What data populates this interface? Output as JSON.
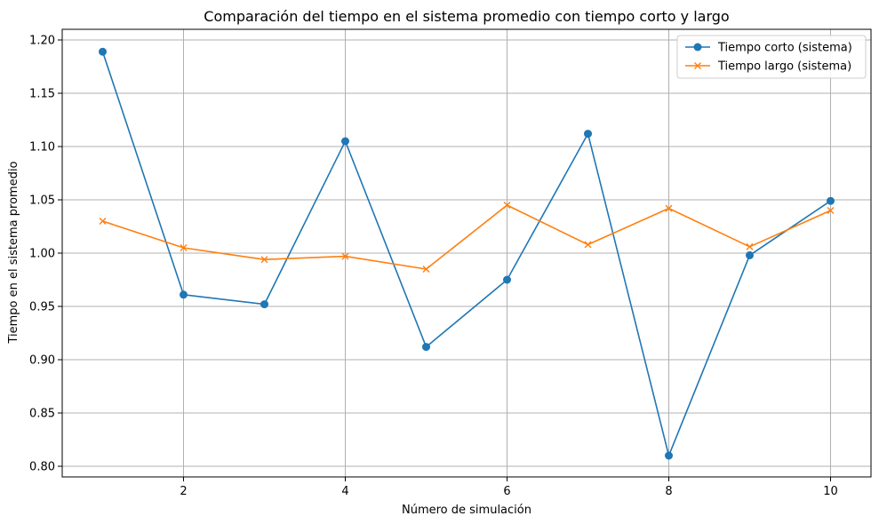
{
  "chart_data": {
    "type": "line",
    "title": "Comparación del tiempo en el sistema promedio con tiempo corto y largo",
    "xlabel": "Número de simulación",
    "ylabel": "Tiempo en el sistema promedio",
    "x": [
      1,
      2,
      3,
      4,
      5,
      6,
      7,
      8,
      9,
      10
    ],
    "xlim": [
      0.5,
      10.5
    ],
    "ylim": [
      0.79,
      1.21
    ],
    "xticks": [
      2,
      4,
      6,
      8,
      10
    ],
    "yticks": [
      0.8,
      0.85,
      0.9,
      0.95,
      1.0,
      1.05,
      1.1,
      1.15,
      1.2
    ],
    "xtick_labels": [
      "2",
      "4",
      "6",
      "8",
      "10"
    ],
    "ytick_labels": [
      "0.80",
      "0.85",
      "0.90",
      "0.95",
      "1.00",
      "1.05",
      "1.10",
      "1.15",
      "1.20"
    ],
    "grid": true,
    "legend_position": "top-right",
    "series": [
      {
        "name": "Tiempo corto (sistema)",
        "color": "#1f77b4",
        "marker": "circle",
        "values": [
          1.189,
          0.961,
          0.952,
          1.105,
          0.912,
          0.975,
          1.112,
          0.81,
          0.998,
          1.049
        ]
      },
      {
        "name": "Tiempo largo (sistema)",
        "color": "#ff7f0e",
        "marker": "x",
        "values": [
          1.03,
          1.005,
          0.994,
          0.997,
          0.985,
          1.045,
          1.008,
          1.042,
          1.006,
          1.04
        ]
      }
    ]
  }
}
